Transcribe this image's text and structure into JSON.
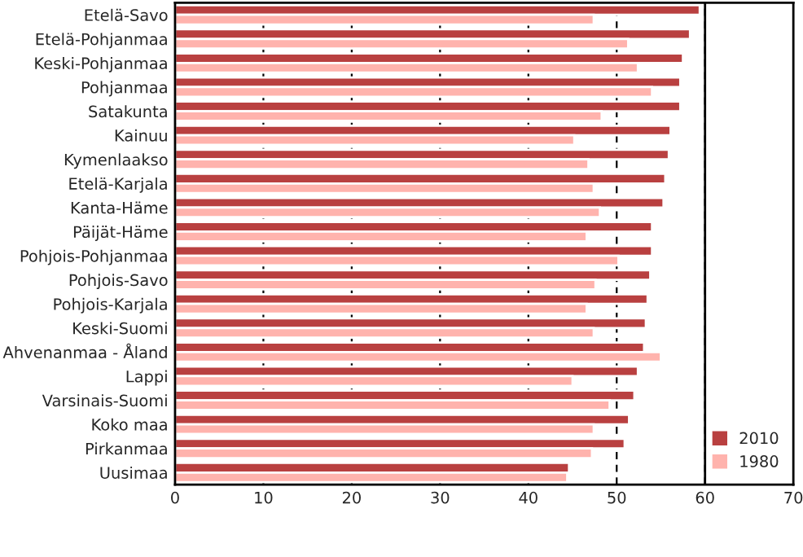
{
  "chart_data": {
    "type": "bar",
    "orientation": "horizontal",
    "categories": [
      "Etelä-Savo",
      "Etelä-Pohjanmaa",
      "Keski-Pohjanmaa",
      "Pohjanmaa",
      "Satakunta",
      "Kainuu",
      "Kymenlaakso",
      "Etelä-Karjala",
      "Kanta-Häme",
      "Päijät-Häme",
      "Pohjois-Pohjanmaa",
      "Pohjois-Savo",
      "Pohjois-Karjala",
      "Keski-Suomi",
      "Ahvenanmaa - Åland",
      "Lappi",
      "Varsinais-Suomi",
      "Koko maa",
      "Pirkanmaa",
      "Uusimaa"
    ],
    "series": [
      {
        "name": "2010",
        "color": "#b94040",
        "values": [
          59.4,
          58.3,
          57.5,
          57.2,
          57.2,
          56.1,
          55.9,
          55.5,
          55.3,
          54.0,
          54.0,
          53.8,
          53.5,
          53.3,
          53.1,
          52.4,
          52.0,
          51.4,
          50.9,
          44.6
        ]
      },
      {
        "name": "1980",
        "color": "#ffb3ad",
        "values": [
          47.4,
          51.3,
          52.4,
          54.0,
          48.3,
          45.2,
          46.8,
          47.4,
          48.1,
          46.6,
          50.2,
          47.6,
          46.6,
          47.4,
          55.0,
          45.0,
          49.2,
          47.4,
          47.2,
          44.4
        ]
      }
    ],
    "xlim": [
      0,
      70
    ],
    "xticks": [
      0,
      10,
      20,
      30,
      40,
      50,
      60,
      70
    ],
    "grid": "x",
    "legend": "bottom right",
    "ref_lines": [
      {
        "axis": "x",
        "value": 60,
        "color": "#000000",
        "line_style": "solid"
      }
    ]
  }
}
